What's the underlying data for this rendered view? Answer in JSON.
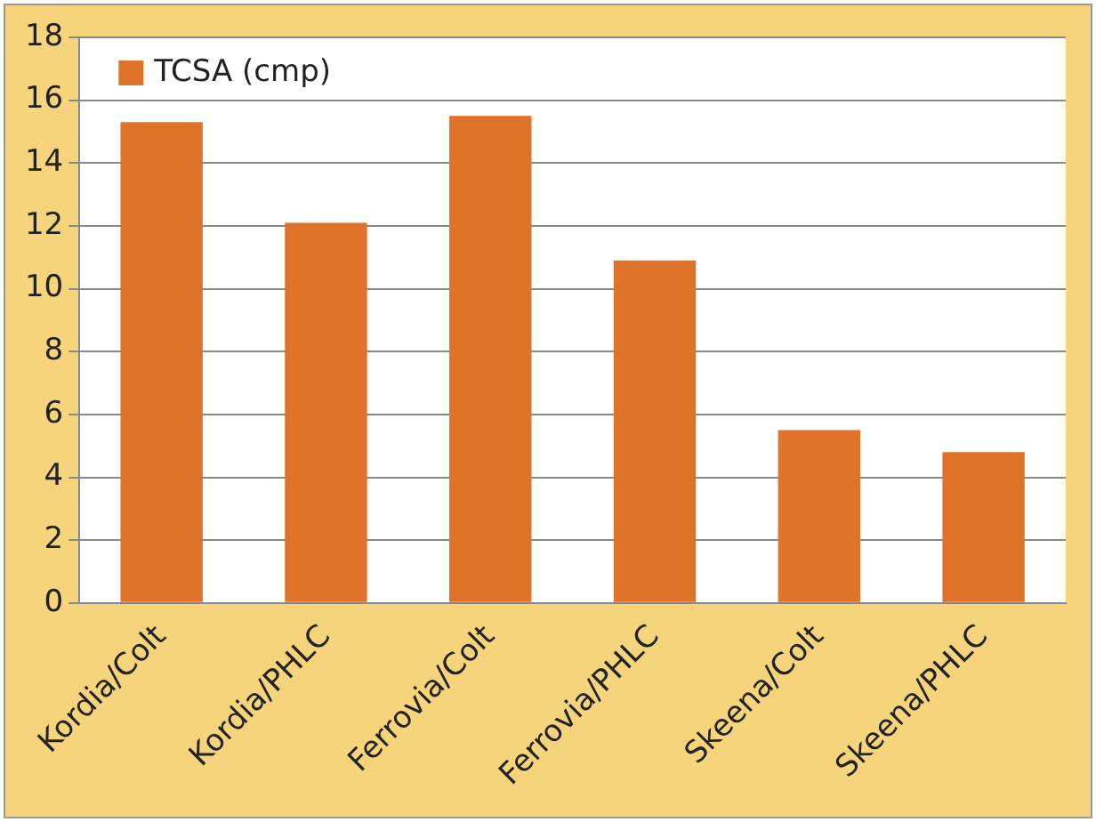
{
  "chart_data": {
    "type": "bar",
    "categories": [
      "Kordia/Colt",
      "Kordia/PHLC",
      "Ferrovia/Colt",
      "Ferrovia/PHLC",
      "Skeena/Colt",
      "Skeena/PHLC"
    ],
    "series": [
      {
        "name": "TCSA (cmp)",
        "color": "#e0732a",
        "values": [
          15.3,
          12.1,
          15.5,
          10.9,
          5.5,
          4.8
        ]
      }
    ],
    "ylim": [
      0,
      18
    ],
    "yticks": [
      0,
      2,
      4,
      6,
      8,
      10,
      12,
      14,
      16,
      18
    ],
    "grid": "y",
    "legend": "top left"
  }
}
